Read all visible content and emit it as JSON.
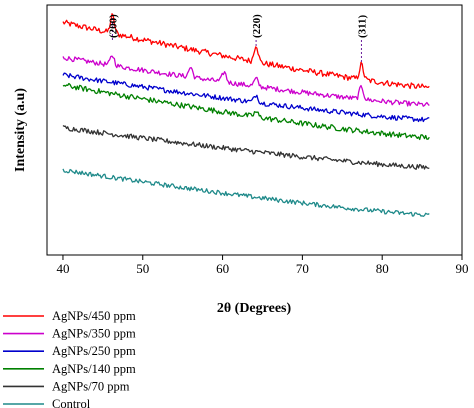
{
  "chart_data": {
    "type": "line",
    "xlabel": "2θ (Degrees)",
    "ylabel": "Intensity (a.u)",
    "xlim": [
      38,
      90
    ],
    "x_ticks": [
      40,
      50,
      60,
      70,
      80,
      90
    ],
    "y_ticks_shown": false,
    "grid": false,
    "legend_position": "bottom-left, below plot",
    "peak_annotations": [
      {
        "label": "(200)",
        "x": 46.2
      },
      {
        "label": "(220)",
        "x": 64.2
      },
      {
        "label": "(311)",
        "x": 77.4
      }
    ],
    "x_range": [
      40,
      86
    ],
    "series": [
      {
        "name": "AgNPs/450 ppm",
        "color": "#ff0000",
        "start_level": 0.93,
        "end_level": 0.67,
        "noise": 0.012,
        "peaks": [
          {
            "x": 46.2,
            "height": 0.07
          },
          {
            "x": 64.2,
            "height": 0.07
          },
          {
            "x": 77.4,
            "height": 0.06
          }
        ]
      },
      {
        "name": "AgNPs/350 ppm",
        "color": "#cc00cc",
        "start_level": 0.79,
        "end_level": 0.6,
        "noise": 0.01,
        "peaks": [
          {
            "x": 46.2,
            "height": 0.04
          },
          {
            "x": 56.0,
            "height": 0.04
          },
          {
            "x": 60.2,
            "height": 0.04
          },
          {
            "x": 64.2,
            "height": 0.03
          },
          {
            "x": 77.4,
            "height": 0.05
          }
        ]
      },
      {
        "name": "AgNPs/250 ppm",
        "color": "#0000cc",
        "start_level": 0.72,
        "end_level": 0.54,
        "noise": 0.01,
        "peaks": [
          {
            "x": 64.2,
            "height": 0.03
          }
        ]
      },
      {
        "name": "AgNPs/140 ppm",
        "color": "#008000",
        "start_level": 0.68,
        "end_level": 0.47,
        "noise": 0.011,
        "peaks": [
          {
            "x": 64.2,
            "height": 0.02
          }
        ]
      },
      {
        "name": "AgNPs/70 ppm",
        "color": "#333333",
        "start_level": 0.51,
        "end_level": 0.35,
        "noise": 0.01,
        "peaks": []
      },
      {
        "name": "Control",
        "color": "#1f8a8a",
        "start_level": 0.34,
        "end_level": 0.16,
        "noise": 0.009,
        "peaks": []
      }
    ]
  }
}
